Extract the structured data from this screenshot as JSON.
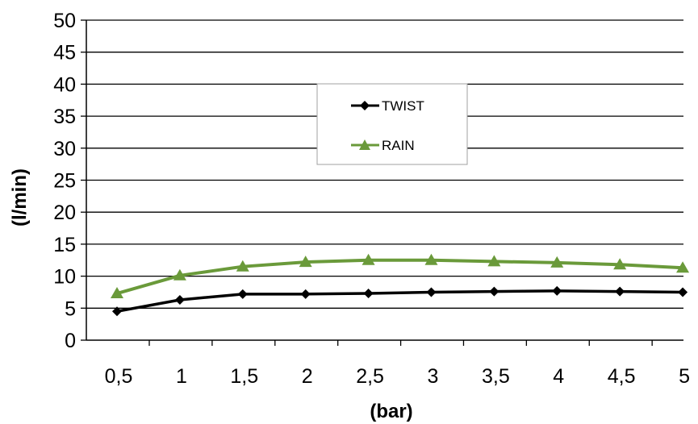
{
  "chart_data": {
    "type": "line",
    "title": "",
    "xlabel": "(bar)",
    "ylabel": "(l/min)",
    "categories": [
      "0,5",
      "1",
      "1,5",
      "2",
      "2,5",
      "3",
      "3,5",
      "4",
      "4,5",
      "5"
    ],
    "ylim": [
      0,
      50
    ],
    "yticks": [
      0,
      5,
      10,
      15,
      20,
      25,
      30,
      35,
      40,
      45,
      50
    ],
    "grid": true,
    "legend_position": "top-center",
    "series": [
      {
        "name": "TWIST",
        "color": "#000000",
        "marker": "diamond",
        "values": [
          4.5,
          6.3,
          7.2,
          7.2,
          7.3,
          7.5,
          7.6,
          7.7,
          7.6,
          7.5
        ]
      },
      {
        "name": "RAIN",
        "color": "#6a9a3a",
        "marker": "triangle",
        "values": [
          7.3,
          10.1,
          11.5,
          12.2,
          12.5,
          12.5,
          12.3,
          12.1,
          11.8,
          11.3
        ]
      }
    ]
  }
}
